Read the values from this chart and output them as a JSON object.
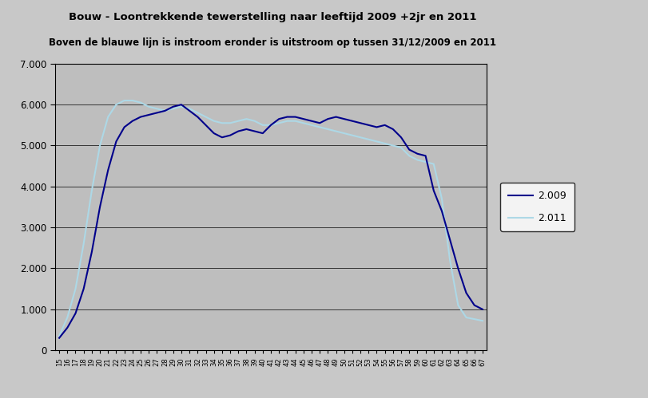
{
  "title1": "Bouw - Loontrekkende tewerstelling naar leeftijd 2009 +2jr en 2011",
  "title2": "Boven de blauwe lijn is instroom eronder is uitstroom op tussen 31/12/2009 en 2011",
  "legend_2009": "2.009",
  "legend_2011": "2.011",
  "color_2009": "#00008B",
  "color_2011": "#ADD8E6",
  "background_plot": "#BEBEBE",
  "background_fig": "#C0C0C0",
  "ylim": [
    0,
    7000
  ],
  "yticks": [
    0,
    1000,
    2000,
    3000,
    4000,
    5000,
    6000,
    7000
  ],
  "ages": [
    15,
    16,
    17,
    18,
    19,
    20,
    21,
    22,
    23,
    24,
    25,
    26,
    27,
    28,
    29,
    30,
    31,
    32,
    33,
    34,
    35,
    36,
    37,
    38,
    39,
    40,
    41,
    42,
    43,
    44,
    45,
    46,
    47,
    48,
    49,
    50,
    51,
    52,
    53,
    54,
    55,
    56,
    57,
    58,
    59,
    60,
    61,
    62,
    63,
    64,
    65,
    66,
    67
  ],
  "values_2009": [
    300,
    550,
    900,
    1500,
    2400,
    3500,
    4400,
    5100,
    5450,
    5600,
    5700,
    5750,
    5800,
    5850,
    5950,
    6000,
    5850,
    5700,
    5500,
    5300,
    5200,
    5250,
    5350,
    5400,
    5350,
    5300,
    5500,
    5650,
    5700,
    5700,
    5650,
    5600,
    5550,
    5650,
    5700,
    5650,
    5600,
    5550,
    5500,
    5450,
    5500,
    5400,
    5200,
    4900,
    4800,
    4750,
    3900,
    3400,
    2700,
    2000,
    1400,
    1100,
    1000
  ],
  "values_2011": [
    350,
    800,
    1500,
    2600,
    3900,
    5000,
    5700,
    6000,
    6100,
    6100,
    6050,
    5950,
    5900,
    5850,
    5900,
    5950,
    5900,
    5800,
    5700,
    5600,
    5550,
    5550,
    5600,
    5650,
    5600,
    5500,
    5500,
    5550,
    5600,
    5600,
    5550,
    5500,
    5450,
    5400,
    5350,
    5300,
    5250,
    5200,
    5150,
    5100,
    5050,
    5000,
    4950,
    4750,
    4650,
    4600,
    4550,
    3700,
    2200,
    1100,
    800,
    760,
    720
  ]
}
